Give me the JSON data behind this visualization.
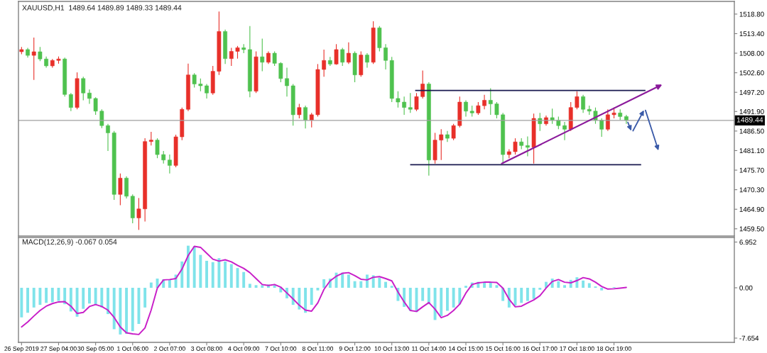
{
  "chart_data": [
    {
      "type": "candlestick",
      "title": "XAUUSD,H1  1489.64 1489.89 1489.33 1489.44",
      "categories": [
        null,
        null,
        null,
        null,
        null,
        null,
        null,
        null,
        null,
        null,
        null,
        null,
        null,
        null,
        null,
        null,
        null,
        null,
        null,
        null,
        null,
        null,
        null,
        null,
        null,
        null,
        null,
        null,
        null,
        null,
        null,
        null,
        null,
        null,
        null,
        null,
        null,
        null,
        null,
        null,
        null,
        null,
        null,
        null,
        null,
        null,
        null,
        null,
        null,
        null,
        null,
        null,
        null,
        null,
        null,
        null,
        null,
        null,
        null,
        null,
        null,
        null,
        null,
        null,
        null,
        null,
        null,
        null,
        null,
        null,
        null,
        null,
        null,
        null,
        null,
        null,
        null,
        null,
        null,
        null,
        null,
        null,
        null,
        null,
        null,
        null,
        null,
        null,
        null,
        null,
        null,
        null,
        null,
        null,
        null,
        null,
        null,
        null,
        null,
        null,
        null,
        null,
        null,
        null,
        null,
        null,
        null,
        null,
        null,
        null,
        null,
        null,
        null,
        null,
        null,
        null
      ],
      "ohlc": [
        [
          1508.4,
          1509.7,
          1507.7,
          1509.0
        ],
        [
          1509.0,
          1509.5,
          1506.8,
          1507.4
        ],
        [
          1507.4,
          1512.3,
          1500.6,
          1508.4
        ],
        [
          1508.4,
          1509.7,
          1505.8,
          1506.4
        ],
        [
          1506.4,
          1507.1,
          1504.0,
          1504.5
        ],
        [
          1504.5,
          1506.4,
          1504.0,
          1506.0
        ],
        [
          1506.0,
          1507.1,
          1505.1,
          1506.4
        ],
        [
          1506.4,
          1506.8,
          1496.0,
          1496.6
        ],
        [
          1496.6,
          1497.0,
          1492.0,
          1493.0
        ],
        [
          1493.0,
          1502.7,
          1492.5,
          1501.0
        ],
        [
          1501.0,
          1501.5,
          1495.0,
          1497.0
        ],
        [
          1497.0,
          1498.0,
          1494.0,
          1495.5
        ],
        [
          1495.5,
          1495.8,
          1491.0,
          1492.0
        ],
        [
          1492.0,
          1492.5,
          1487.3,
          1488.0
        ],
        [
          1488.0,
          1488.5,
          1481.0,
          1486.0
        ],
        [
          1486.0,
          1486.5,
          1467.5,
          1469.0
        ],
        [
          1469.0,
          1474.8,
          1466.0,
          1473.5
        ],
        [
          1473.5,
          1474.0,
          1467.9,
          1468.5
        ],
        [
          1468.5,
          1469.0,
          1461.0,
          1462.5
        ],
        [
          1462.5,
          1468.0,
          1459.2,
          1465.0
        ],
        [
          1465.0,
          1484.5,
          1461.5,
          1483.6
        ],
        [
          1483.6,
          1486.3,
          1482.5,
          1484.0
        ],
        [
          1484.0,
          1484.5,
          1479.0,
          1480.0
        ],
        [
          1480.0,
          1481.0,
          1477.5,
          1478.5
        ],
        [
          1478.5,
          1480.0,
          1474.8,
          1477.0
        ],
        [
          1477.0,
          1485.5,
          1476.5,
          1484.9
        ],
        [
          1484.9,
          1493.0,
          1484.0,
          1492.5
        ],
        [
          1492.5,
          1505.1,
          1492.0,
          1502.0
        ],
        [
          1502.0,
          1502.5,
          1498.5,
          1499.5
        ],
        [
          1499.5,
          1501.0,
          1497.5,
          1499.0
        ],
        [
          1499.0,
          1499.5,
          1495.5,
          1497.0
        ],
        [
          1497.0,
          1504.5,
          1496.5,
          1503.0
        ],
        [
          1503.0,
          1519.5,
          1502.0,
          1514.0
        ],
        [
          1514.0,
          1514.5,
          1505.0,
          1506.5
        ],
        [
          1506.5,
          1509.5,
          1504.5,
          1508.5
        ],
        [
          1508.5,
          1510.0,
          1506.5,
          1509.5
        ],
        [
          1509.5,
          1510.5,
          1508.0,
          1509.0
        ],
        [
          1509.0,
          1515.5,
          1495.8,
          1497.5
        ],
        [
          1497.5,
          1508.5,
          1497.0,
          1507.0
        ],
        [
          1507.0,
          1512.0,
          1503.0,
          1505.5
        ],
        [
          1505.5,
          1508.5,
          1505.0,
          1508.0
        ],
        [
          1508.0,
          1508.5,
          1504.5,
          1505.2
        ],
        [
          1505.2,
          1505.5,
          1500.0,
          1501.0
        ],
        [
          1501.0,
          1504.0,
          1496.0,
          1499.0
        ],
        [
          1499.0,
          1499.5,
          1488.0,
          1491.0
        ],
        [
          1491.0,
          1494.0,
          1490.0,
          1493.0
        ],
        [
          1493.0,
          1493.5,
          1487.2,
          1489.5
        ],
        [
          1489.5,
          1491.5,
          1487.5,
          1491.0
        ],
        [
          1491.0,
          1505.0,
          1490.5,
          1503.5
        ],
        [
          1503.5,
          1509.0,
          1501.5,
          1506.0
        ],
        [
          1506.0,
          1507.0,
          1504.5,
          1505.0
        ],
        [
          1505.0,
          1510.5,
          1504.8,
          1509.0
        ],
        [
          1509.0,
          1509.5,
          1504.5,
          1505.5
        ],
        [
          1505.5,
          1511.0,
          1505.0,
          1508.0
        ],
        [
          1508.0,
          1508.5,
          1500.0,
          1502.0
        ],
        [
          1502.0,
          1508.5,
          1501.5,
          1507.5
        ],
        [
          1507.5,
          1508.0,
          1504.0,
          1505.5
        ],
        [
          1505.5,
          1516.8,
          1505.0,
          1515.0
        ],
        [
          1515.0,
          1515.5,
          1508.5,
          1509.5
        ],
        [
          1509.5,
          1510.5,
          1503.5,
          1506.0
        ],
        [
          1506.0,
          1507.0,
          1494.5,
          1495.5
        ],
        [
          1495.5,
          1497.5,
          1493.0,
          1494.5
        ],
        [
          1494.5,
          1496.0,
          1491.0,
          1493.0
        ],
        [
          1493.0,
          1497.0,
          1491.5,
          1492.5
        ],
        [
          1492.5,
          1497.0,
          1492.0,
          1496.0
        ],
        [
          1496.0,
          1503.2,
          1495.5,
          1499.5
        ],
        [
          1499.5,
          1500.0,
          1474.2,
          1478.5
        ],
        [
          1478.5,
          1486.0,
          1477.5,
          1484.0
        ],
        [
          1484.0,
          1487.0,
          1478.5,
          1485.5
        ],
        [
          1485.5,
          1486.5,
          1483.5,
          1484.5
        ],
        [
          1484.5,
          1488.5,
          1484.0,
          1488.0
        ],
        [
          1488.0,
          1496.0,
          1487.5,
          1494.5
        ],
        [
          1494.5,
          1495.0,
          1490.5,
          1492.0
        ],
        [
          1492.0,
          1493.5,
          1490.5,
          1491.5
        ],
        [
          1491.5,
          1494.5,
          1491.0,
          1493.5
        ],
        [
          1493.5,
          1496.5,
          1492.5,
          1495.0
        ],
        [
          1495.0,
          1498.3,
          1491.0,
          1494.0
        ],
        [
          1494.0,
          1494.5,
          1490.0,
          1491.0
        ],
        [
          1491.0,
          1491.5,
          1477.8,
          1480.0
        ],
        [
          1480.0,
          1481.5,
          1479.0,
          1480.8
        ],
        [
          1480.8,
          1484.5,
          1480.0,
          1483.5
        ],
        [
          1483.5,
          1484.5,
          1481.5,
          1482.5
        ],
        [
          1482.5,
          1485.0,
          1479.5,
          1482.0
        ],
        [
          1482.0,
          1491.3,
          1477.5,
          1490.0
        ],
        [
          1490.0,
          1491.5,
          1486.5,
          1488.5
        ],
        [
          1488.5,
          1490.8,
          1488.0,
          1490.2
        ],
        [
          1490.2,
          1492.7,
          1488.5,
          1489.5
        ],
        [
          1489.5,
          1490.5,
          1487.0,
          1488.0
        ],
        [
          1488.0,
          1489.0,
          1484.0,
          1487.0
        ],
        [
          1487.0,
          1494.5,
          1486.5,
          1493.0
        ],
        [
          1493.0,
          1497.5,
          1492.5,
          1496.0
        ],
        [
          1496.0,
          1496.5,
          1491.5,
          1492.5
        ],
        [
          1492.5,
          1493.5,
          1491.0,
          1492.0
        ],
        [
          1492.0,
          1493.0,
          1488.5,
          1489.5
        ],
        [
          1489.5,
          1490.0,
          1484.9,
          1487.0
        ],
        [
          1487.0,
          1492.5,
          1486.5,
          1491.0
        ],
        [
          1491.0,
          1493.0,
          1490.0,
          1491.5
        ],
        [
          1491.5,
          1492.5,
          1489.5,
          1490.5
        ],
        [
          1490.5,
          1491.0,
          1488.5,
          1489.44
        ],
        null,
        null,
        null,
        null,
        null,
        null,
        null,
        null,
        null,
        null,
        null,
        null,
        null,
        null,
        null,
        null,
        null
      ],
      "colors": [
        "#e8302a",
        "#4fc24f",
        "#e8302a",
        "#4fc24f",
        "#4fc24f",
        "#e8302a",
        "#e8302a",
        "#4fc24f",
        "#4fc24f",
        "#e8302a",
        "#4fc24f",
        "#4fc24f",
        "#4fc24f",
        "#4fc24f",
        "#4fc24f",
        "#4fc24f",
        "#e8302a",
        "#4fc24f",
        "#4fc24f",
        "#e8302a",
        "#e8302a",
        "#e8302a",
        "#4fc24f",
        "#4fc24f",
        "#4fc24f",
        "#e8302a",
        "#e8302a",
        "#e8302a",
        "#4fc24f",
        "#4fc24f",
        "#4fc24f",
        "#e8302a",
        "#e8302a",
        "#4fc24f",
        "#e8302a",
        "#e8302a",
        "#4fc24f",
        "#4fc24f",
        "#e8302a",
        "#4fc24f",
        "#e8302a",
        "#4fc24f",
        "#4fc24f",
        "#4fc24f",
        "#4fc24f",
        "#e8302a",
        "#4fc24f",
        "#e8302a",
        "#e8302a",
        "#e8302a",
        "#4fc24f",
        "#e8302a",
        "#4fc24f",
        "#e8302a",
        "#4fc24f",
        "#e8302a",
        "#4fc24f",
        "#e8302a",
        "#4fc24f",
        "#4fc24f",
        "#4fc24f",
        "#4fc24f",
        "#4fc24f",
        "#4fc24f",
        "#e8302a",
        "#e8302a",
        "#4fc24f",
        "#e8302a",
        "#e8302a",
        "#4fc24f",
        "#e8302a",
        "#e8302a",
        "#4fc24f",
        "#4fc24f",
        "#e8302a",
        "#e8302a",
        "#4fc24f",
        "#4fc24f",
        "#4fc24f",
        "#e8302a",
        "#e8302a",
        "#4fc24f",
        "#4fc24f",
        "#e8302a",
        "#4fc24f",
        "#e8302a",
        "#4fc24f",
        "#4fc24f",
        "#4fc24f",
        "#e8302a",
        "#e8302a",
        "#4fc24f",
        "#4fc24f",
        "#4fc24f",
        "#4fc24f",
        "#e8302a",
        "#e8302a",
        "#4fc24f",
        "#4fc24f",
        null,
        null,
        null,
        null,
        null,
        null,
        null,
        null,
        null,
        null,
        null,
        null,
        null,
        null,
        null,
        null,
        null
      ],
      "ylim": [
        1457.5,
        1522.3
      ],
      "yticks": [
        {
          "value": 1459.5,
          "label": "1459.50"
        },
        {
          "value": 1464.9,
          "label": "1464.90"
        },
        {
          "value": 1470.3,
          "label": "1470.30"
        },
        {
          "value": 1475.7,
          "label": "1475.70"
        },
        {
          "value": 1481.1,
          "label": "1481.10"
        },
        {
          "value": 1486.5,
          "label": "1486.50"
        },
        {
          "value": 1491.9,
          "label": "1491.90"
        },
        {
          "value": 1497.2,
          "label": "1497.20"
        },
        {
          "value": 1502.6,
          "label": "1502.60"
        },
        {
          "value": 1508.0,
          "label": "1508.00"
        },
        {
          "value": 1513.4,
          "label": "1513.40"
        },
        {
          "value": 1518.8,
          "label": "1518.80"
        }
      ],
      "ref_lines": [
        {
          "axis": "y",
          "value": 1489.44,
          "label": "1489.44",
          "color": "#a0a0a0"
        },
        {
          "axis": "y",
          "value": 1497.7,
          "color": "#1a1a50"
        },
        {
          "axis": "y",
          "value": 1477.2,
          "color": "#1a1a50"
        }
      ],
      "tick_labels": "y"
    },
    {
      "type": "bar",
      "title": "MACD(12,26,9) -0.067 0.054",
      "categories": [
        "26 Sep 2019",
        null,
        null,
        null,
        null,
        null,
        "27 Sep 04:00",
        null,
        null,
        null,
        null,
        null,
        "30 Sep 05:00",
        null,
        null,
        null,
        null,
        null,
        "1 Oct 06:00",
        null,
        null,
        null,
        null,
        null,
        "2 Oct 07:00",
        null,
        null,
        null,
        null,
        null,
        "3 Oct 08:00",
        null,
        null,
        null,
        null,
        null,
        "4 Oct 09:00",
        null,
        null,
        null,
        null,
        null,
        "7 Oct 10:00",
        null,
        null,
        null,
        null,
        null,
        "8 Oct 11:00",
        null,
        null,
        null,
        null,
        null,
        "9 Oct 12:00",
        null,
        null,
        null,
        null,
        null,
        "10 Oct 13:00",
        null,
        null,
        null,
        null,
        null,
        "11 Oct 14:00",
        null,
        null,
        null,
        null,
        null,
        "14 Oct 15:00",
        null,
        null,
        null,
        null,
        null,
        "15 Oct 16:00",
        null,
        null,
        null,
        null,
        null,
        "16 Oct 17:00",
        null,
        null,
        null,
        null,
        null,
        "17 Oct 18:00",
        null,
        null,
        null,
        null,
        null,
        "18 Oct 19:00",
        null,
        null,
        null,
        null,
        null,
        null,
        null,
        null,
        null,
        null,
        null,
        null,
        null,
        null,
        null,
        null,
        null,
        null,
        null
      ],
      "series": [
        {
          "type": "bar",
          "color": "#7fe3ea",
          "values": [
            -4.5,
            -3.8,
            -3.0,
            -2.6,
            -2.3,
            -2.2,
            -2.0,
            -2.5,
            -3.6,
            -4.4,
            -3.2,
            -2.4,
            -2.5,
            -3.0,
            -4.0,
            -6.3,
            -7.1,
            -7.0,
            -6.6,
            -5.5,
            -3.0,
            0.8,
            1.4,
            1.3,
            1.2,
            2.0,
            4.0,
            6.4,
            6.3,
            5.0,
            4.1,
            3.9,
            4.5,
            4.0,
            3.6,
            3.0,
            2.4,
            0.6,
            0.4,
            0.4,
            0.5,
            0.4,
            -0.7,
            -1.6,
            -2.6,
            -3.3,
            -3.8,
            -2.6,
            -0.4,
            1.3,
            1.4,
            2.3,
            2.3,
            2.0,
            1.0,
            1.0,
            2.0,
            1.9,
            1.5,
            0.9,
            0.3,
            -2.0,
            -2.9,
            -3.5,
            -3.7,
            -2.0,
            -2.5,
            -4.9,
            -4.3,
            -3.5,
            -3.0,
            -2.5,
            0.3,
            0.8,
            0.9,
            0.9,
            0.9,
            0.4,
            -2.0,
            -3.0,
            -2.7,
            -2.3,
            -2.0,
            -1.7,
            -0.3,
            0.9,
            1.4,
            1.0,
            0.4,
            1.2,
            1.6,
            1.1,
            0.7,
            0.2,
            -0.4,
            0.0,
            0.1,
            0.0,
            null,
            null,
            null,
            null,
            null,
            null,
            null,
            null,
            null,
            null,
            null,
            null,
            null,
            null,
            null,
            null,
            null,
            null
          ]
        },
        {
          "type": "line",
          "color": "#c81ec8",
          "values": [
            -5.95,
            -5.2,
            -4.3,
            -3.45,
            -2.8,
            -2.4,
            -2.15,
            -2.1,
            -2.8,
            -3.9,
            -3.75,
            -2.85,
            -2.55,
            -2.85,
            -3.4,
            -4.5,
            -5.95,
            -6.85,
            -7.0,
            -7.1,
            -6.1,
            -3.4,
            -0.05,
            1.2,
            1.25,
            1.4,
            2.85,
            4.9,
            6.3,
            6.15,
            5.25,
            4.35,
            4.05,
            4.25,
            3.95,
            3.4,
            2.95,
            2.3,
            1.4,
            0.5,
            0.35,
            0.5,
            0.1,
            -0.8,
            -1.7,
            -2.65,
            -3.4,
            -3.55,
            -2.3,
            -0.25,
            1.05,
            1.75,
            2.2,
            2.3,
            1.85,
            1.3,
            1.2,
            1.6,
            1.7,
            1.4,
            1.05,
            -0.65,
            -2.15,
            -3.45,
            -3.6,
            -2.9,
            -2.25,
            -3.25,
            -4.55,
            -4.2,
            -3.45,
            -2.5,
            -0.8,
            0.5,
            0.75,
            0.85,
            0.85,
            0.8,
            -0.05,
            -1.75,
            -2.9,
            -2.8,
            -2.3,
            -1.85,
            -1.2,
            -0.05,
            0.95,
            1.25,
            0.85,
            0.75,
            1.1,
            1.55,
            1.35,
            0.85,
            0.2,
            -0.2,
            -0.15,
            -0.05,
            0.054,
            null,
            null,
            null,
            null,
            null,
            null,
            null,
            null,
            null,
            null,
            null,
            null,
            null,
            null,
            null,
            null,
            null
          ]
        }
      ],
      "ylim": [
        -8.3,
        7.65
      ],
      "yticks": [
        {
          "value": -7.654,
          "label": "-7.654"
        },
        {
          "value": 0,
          "label": "0.00"
        },
        {
          "value": 6.952,
          "label": "6.952"
        }
      ]
    }
  ]
}
